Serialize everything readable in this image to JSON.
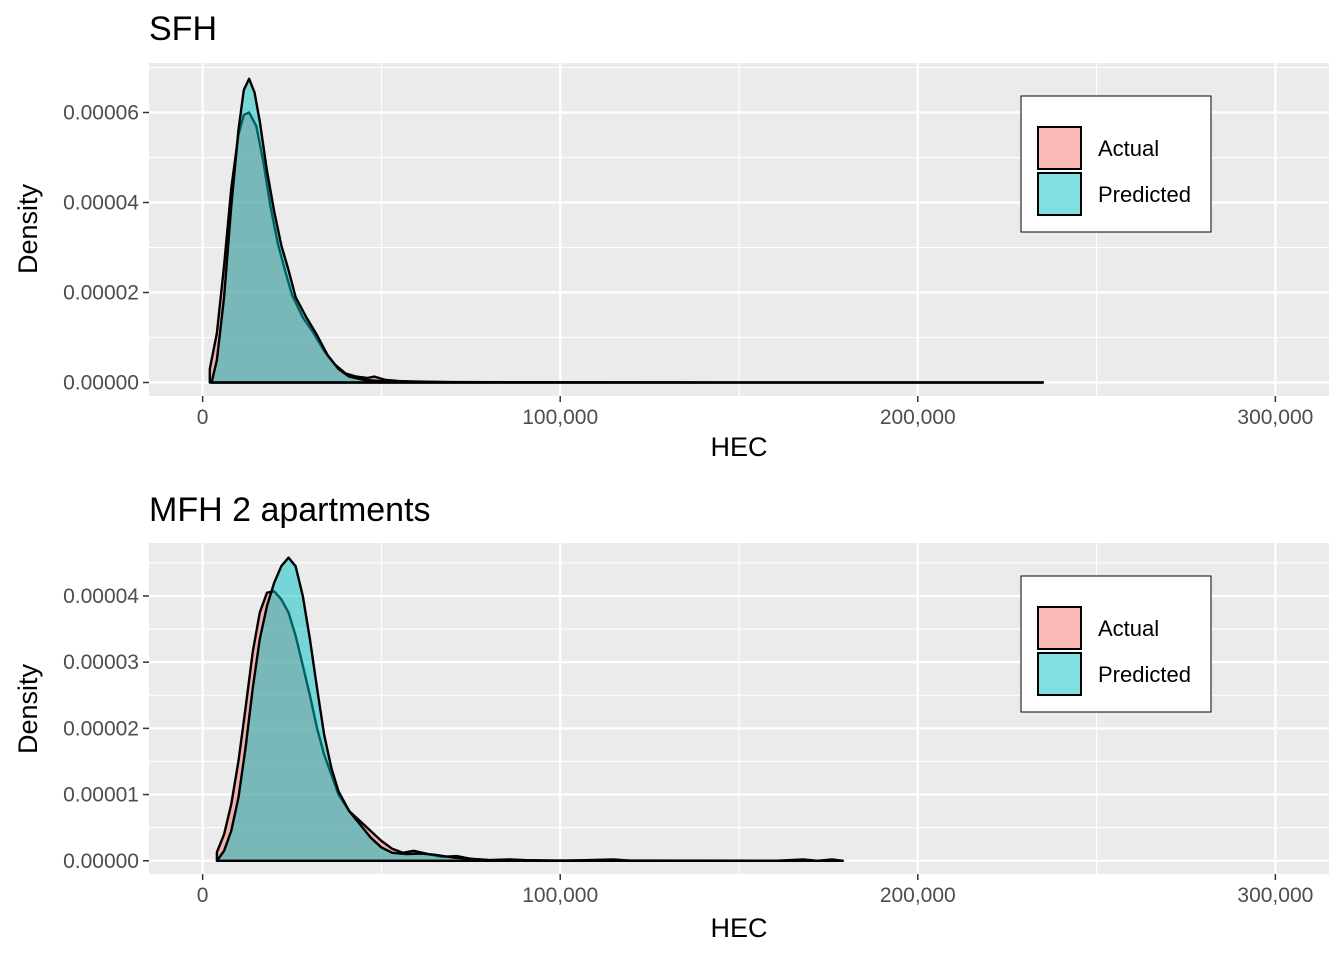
{
  "colors": {
    "panel_bg": "#EBEBEB",
    "grid": "#FFFFFF",
    "actual": "#F8766D",
    "predicted": "#00BFC4",
    "outline": "#000000"
  },
  "chart_data": [
    {
      "type": "area",
      "subtype": "density",
      "title": "SFH",
      "xlabel": "HEC",
      "ylabel": "Density",
      "xlim": [
        -15000,
        315000
      ],
      "ylim": [
        -3e-06,
        7.1e-05
      ],
      "x_ticks": [
        0,
        100000,
        200000,
        300000
      ],
      "x_tick_labels": [
        "0",
        "100,000",
        "200,000",
        "300,000"
      ],
      "y_ticks": [
        0,
        2e-05,
        4e-05,
        6e-05
      ],
      "y_tick_labels": [
        "0.00000",
        "0.00002",
        "0.00004",
        "0.00006"
      ],
      "grid": true,
      "legend": {
        "position": "top-right",
        "entries": [
          "Actual",
          "Predicted"
        ]
      },
      "series": [
        {
          "name": "Actual",
          "color": "#F8766D",
          "points": [
            [
              2000,
              3e-06
            ],
            [
              4000,
              1.1e-05
            ],
            [
              6000,
              2.6e-05
            ],
            [
              8000,
              4.3e-05
            ],
            [
              10000,
              5.5e-05
            ],
            [
              11500,
              5.95e-05
            ],
            [
              13000,
              6e-05
            ],
            [
              15000,
              5.7e-05
            ],
            [
              17000,
              4.9e-05
            ],
            [
              19000,
              3.9e-05
            ],
            [
              21000,
              3.1e-05
            ],
            [
              23000,
              2.5e-05
            ],
            [
              25000,
              1.95e-05
            ],
            [
              28000,
              1.45e-05
            ],
            [
              31000,
              1.1e-05
            ],
            [
              34000,
              7e-06
            ],
            [
              37000,
              4e-06
            ],
            [
              40000,
              2e-06
            ],
            [
              43000,
              1.3e-06
            ],
            [
              46000,
              1e-06
            ],
            [
              48000,
              1.3e-06
            ],
            [
              51000,
              6e-07
            ],
            [
              55000,
              3e-07
            ],
            [
              60000,
              2e-07
            ],
            [
              70000,
              1e-07
            ],
            [
              100000,
              4e-08
            ],
            [
              150000,
              2e-08
            ],
            [
              235000,
              0
            ]
          ]
        },
        {
          "name": "Predicted",
          "color": "#00BFC4",
          "points": [
            [
              2500,
              0
            ],
            [
              4000,
              5e-06
            ],
            [
              6000,
              1.9e-05
            ],
            [
              8000,
              3.9e-05
            ],
            [
              10000,
              5.6e-05
            ],
            [
              11500,
              6.5e-05
            ],
            [
              13000,
              6.75e-05
            ],
            [
              14500,
              6.45e-05
            ],
            [
              16000,
              5.8e-05
            ],
            [
              18000,
              4.7e-05
            ],
            [
              20000,
              3.8e-05
            ],
            [
              22000,
              3.05e-05
            ],
            [
              24000,
              2.5e-05
            ],
            [
              26000,
              1.9e-05
            ],
            [
              29000,
              1.45e-05
            ],
            [
              32000,
              1.05e-05
            ],
            [
              35000,
              6e-06
            ],
            [
              38000,
              3e-06
            ],
            [
              41000,
              1.3e-06
            ],
            [
              45000,
              6e-07
            ],
            [
              50000,
              3e-07
            ],
            [
              60000,
              1e-07
            ],
            [
              80000,
              5e-08
            ],
            [
              120000,
              2e-08
            ],
            [
              180000,
              1e-08
            ],
            [
              235000,
              0
            ]
          ]
        }
      ]
    },
    {
      "type": "area",
      "subtype": "density",
      "title": "MFH 2 apartments",
      "xlabel": "HEC",
      "ylabel": "Density",
      "xlim": [
        -15000,
        315000
      ],
      "ylim": [
        -2e-06,
        4.8e-05
      ],
      "x_ticks": [
        0,
        100000,
        200000,
        300000
      ],
      "x_tick_labels": [
        "0",
        "100,000",
        "200,000",
        "300,000"
      ],
      "y_ticks": [
        0,
        1e-05,
        2e-05,
        3e-05,
        4e-05
      ],
      "y_tick_labels": [
        "0.00000",
        "0.00001",
        "0.00002",
        "0.00003",
        "0.00004"
      ],
      "grid": true,
      "legend": {
        "position": "top-right",
        "entries": [
          "Actual",
          "Predicted"
        ]
      },
      "series": [
        {
          "name": "Actual",
          "color": "#F8766D",
          "points": [
            [
              4000,
              1.3e-06
            ],
            [
              6000,
              4e-06
            ],
            [
              8000,
              8.5e-06
            ],
            [
              10000,
              1.5e-05
            ],
            [
              12000,
              2.3e-05
            ],
            [
              14000,
              3.15e-05
            ],
            [
              16000,
              3.75e-05
            ],
            [
              18000,
              4.05e-05
            ],
            [
              20000,
              4.07e-05
            ],
            [
              22000,
              3.95e-05
            ],
            [
              24000,
              3.75e-05
            ],
            [
              26000,
              3.4e-05
            ],
            [
              28000,
              2.95e-05
            ],
            [
              30000,
              2.5e-05
            ],
            [
              32000,
              2e-05
            ],
            [
              34000,
              1.6e-05
            ],
            [
              36000,
              1.3e-05
            ],
            [
              38000,
              1e-05
            ],
            [
              41000,
              7.5e-06
            ],
            [
              44000,
              6e-06
            ],
            [
              47000,
              4.5e-06
            ],
            [
              50000,
              3e-06
            ],
            [
              53000,
              1.8e-06
            ],
            [
              56000,
              1.2e-06
            ],
            [
              59000,
              1.5e-06
            ],
            [
              63000,
              1e-06
            ],
            [
              67000,
              6e-07
            ],
            [
              71000,
              7e-07
            ],
            [
              75000,
              3e-07
            ],
            [
              80000,
              1e-07
            ],
            [
              86000,
              2e-07
            ],
            [
              90000,
              1e-07
            ],
            [
              100000,
              0
            ],
            [
              115000,
              2e-07
            ],
            [
              120000,
              0
            ],
            [
              160000,
              0
            ],
            [
              168000,
              2e-07
            ],
            [
              172000,
              0
            ],
            [
              176000,
              2e-07
            ],
            [
              179000,
              0
            ]
          ]
        },
        {
          "name": "Predicted",
          "color": "#00BFC4",
          "points": [
            [
              4000,
              0
            ],
            [
              6000,
              1.5e-06
            ],
            [
              8000,
              4.5e-06
            ],
            [
              10000,
              9.5e-06
            ],
            [
              12000,
              1.7e-05
            ],
            [
              14000,
              2.6e-05
            ],
            [
              16000,
              3.35e-05
            ],
            [
              18000,
              3.85e-05
            ],
            [
              20000,
              4.2e-05
            ],
            [
              22000,
              4.45e-05
            ],
            [
              24000,
              4.58e-05
            ],
            [
              26000,
              4.45e-05
            ],
            [
              28000,
              4e-05
            ],
            [
              30000,
              3.35e-05
            ],
            [
              32000,
              2.6e-05
            ],
            [
              34000,
              1.9e-05
            ],
            [
              36000,
              1.4e-05
            ],
            [
              38000,
              1.05e-05
            ],
            [
              41000,
              7.5e-06
            ],
            [
              44000,
              5.5e-06
            ],
            [
              47000,
              3.5e-06
            ],
            [
              50000,
              2e-06
            ],
            [
              53000,
              1.2e-06
            ],
            [
              57000,
              1e-06
            ],
            [
              61000,
              1.1e-06
            ],
            [
              65000,
              9e-07
            ],
            [
              70000,
              5e-07
            ],
            [
              75000,
              3e-07
            ],
            [
              80000,
              1e-07
            ],
            [
              90000,
              5e-08
            ],
            [
              120000,
              2e-08
            ],
            [
              179000,
              0
            ]
          ]
        }
      ]
    }
  ]
}
